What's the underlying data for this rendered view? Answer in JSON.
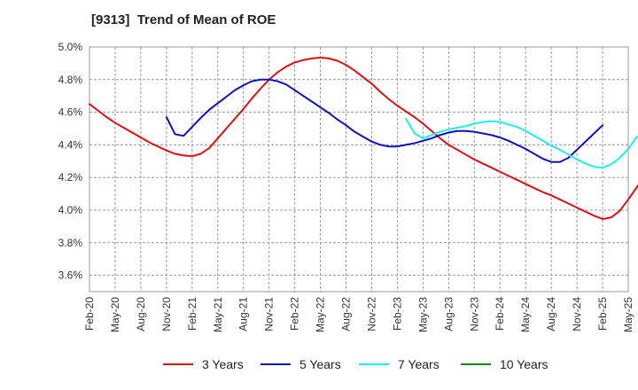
{
  "chart_data": {
    "type": "line",
    "title": "[9313]  Trend of Mean of ROE",
    "xlabel": "",
    "ylabel": "",
    "x_ticks": [
      "Feb-20",
      "May-20",
      "Aug-20",
      "Nov-20",
      "Feb-21",
      "May-21",
      "Aug-21",
      "Nov-21",
      "Feb-22",
      "May-22",
      "Aug-22",
      "Nov-22",
      "Feb-23",
      "May-23",
      "Aug-23",
      "Nov-23",
      "Feb-24",
      "May-24",
      "Aug-24",
      "Nov-24",
      "Feb-25",
      "May-25"
    ],
    "y_ticks": [
      "3.6%",
      "3.8%",
      "4.0%",
      "4.2%",
      "4.4%",
      "4.6%",
      "4.8%",
      "5.0%"
    ],
    "ylim": [
      3.5,
      5.0
    ],
    "grid": true,
    "legend_position": "bottom",
    "series": [
      {
        "name": "3 Years",
        "color": "#dd1111",
        "start_index": 0,
        "values": [
          4.65,
          4.61,
          4.57,
          4.535,
          4.505,
          4.475,
          4.445,
          4.415,
          4.39,
          4.365,
          4.345,
          4.335,
          4.33,
          4.345,
          4.38,
          4.44,
          4.5,
          4.56,
          4.62,
          4.685,
          4.745,
          4.8,
          4.845,
          4.88,
          4.905,
          4.92,
          4.93,
          4.935,
          4.93,
          4.915,
          4.89,
          4.855,
          4.815,
          4.775,
          4.725,
          4.68,
          4.64,
          4.605,
          4.57,
          4.53,
          4.485,
          4.44,
          4.4,
          4.37,
          4.34,
          4.31,
          4.285,
          4.26,
          4.235,
          4.21,
          4.185,
          4.16,
          4.135,
          4.11,
          4.09,
          4.065,
          4.04,
          4.015,
          3.99,
          3.965,
          3.945,
          3.955,
          3.995,
          4.065,
          4.14,
          4.22,
          4.31
        ]
      },
      {
        "name": "5 Years",
        "color": "#1111bb",
        "start_index": 9,
        "values": [
          4.57,
          4.465,
          4.455,
          4.51,
          4.565,
          4.615,
          4.655,
          4.695,
          4.735,
          4.765,
          4.79,
          4.8,
          4.8,
          4.79,
          4.77,
          4.735,
          4.7,
          4.665,
          4.63,
          4.595,
          4.555,
          4.52,
          4.48,
          4.45,
          4.42,
          4.4,
          4.39,
          4.39,
          4.4,
          4.41,
          4.425,
          4.44,
          4.46,
          4.475,
          4.485,
          4.485,
          4.48,
          4.47,
          4.46,
          4.445,
          4.425,
          4.4,
          4.375,
          4.345,
          4.315,
          4.295,
          4.295,
          4.32,
          4.37,
          4.42,
          4.47,
          4.52
        ]
      },
      {
        "name": "7 Years",
        "color": "#22eeee",
        "start_index": 37,
        "values": [
          4.56,
          4.47,
          4.44,
          4.46,
          4.48,
          4.495,
          4.505,
          4.515,
          4.53,
          4.54,
          4.545,
          4.54,
          4.525,
          4.51,
          4.485,
          4.455,
          4.425,
          4.395,
          4.37,
          4.34,
          4.31,
          4.285,
          4.265,
          4.26,
          4.28,
          4.32,
          4.375,
          4.45
        ]
      },
      {
        "name": "10 Years",
        "color": "#118811",
        "start_index": 0,
        "values": []
      }
    ]
  }
}
